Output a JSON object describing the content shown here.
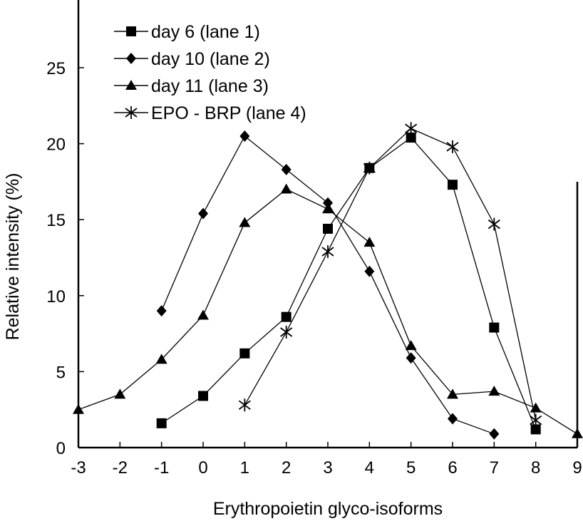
{
  "chart_data": {
    "type": "line",
    "title": "",
    "xlabel": "Erythropoietin glyco-isoforms",
    "ylabel": "Relative intensity (%)",
    "xlim": [
      -3,
      9
    ],
    "ylim": [
      0,
      25
    ],
    "xticks": [
      -3,
      -2,
      -1,
      0,
      1,
      2,
      3,
      4,
      5,
      6,
      7,
      8,
      9
    ],
    "yticks": [
      0,
      5,
      10,
      15,
      20,
      25
    ],
    "grid": false,
    "legend_position": "top-left",
    "series": [
      {
        "name": "day 6 (lane 1)",
        "marker": "square",
        "x": [
          -1,
          0,
          1,
          2,
          3,
          4,
          5,
          6,
          7,
          8
        ],
        "y": [
          1.6,
          3.4,
          6.2,
          8.6,
          14.4,
          18.4,
          20.4,
          17.3,
          7.9,
          1.2
        ]
      },
      {
        "name": "day 10 (lane 2)",
        "marker": "diamond",
        "x": [
          -1,
          0,
          1,
          2,
          3,
          4,
          5,
          6,
          7
        ],
        "y": [
          9.0,
          15.4,
          20.5,
          18.3,
          16.1,
          11.6,
          5.9,
          1.9,
          0.9
        ]
      },
      {
        "name": "day 11 (lane 3)",
        "marker": "triangle",
        "x": [
          -3,
          -2,
          -1,
          0,
          1,
          2,
          3,
          4,
          5,
          6,
          7,
          8,
          9
        ],
        "y": [
          2.5,
          3.5,
          5.8,
          8.7,
          14.8,
          17.0,
          15.7,
          13.5,
          6.7,
          3.5,
          3.7,
          2.6,
          0.9
        ]
      },
      {
        "name": "EPO - BRP (lane 4)",
        "marker": "asterisk",
        "x": [
          1,
          2,
          3,
          4,
          5,
          6,
          7,
          8
        ],
        "y": [
          2.8,
          7.6,
          12.9,
          18.4,
          21.0,
          19.8,
          14.7,
          1.8
        ]
      }
    ]
  }
}
